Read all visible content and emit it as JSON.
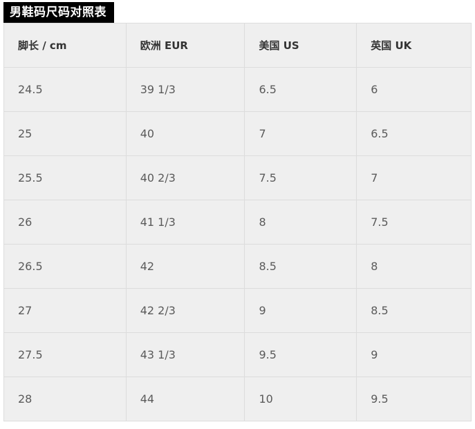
{
  "title": "男鞋码尺码对照表",
  "table": {
    "headers": [
      "脚长 / cm",
      "欧洲 EUR",
      "美国 US",
      "英国 UK"
    ],
    "rows": [
      [
        "24.5",
        "39 1/3",
        "6.5",
        "6"
      ],
      [
        "25",
        "40",
        "7",
        "6.5"
      ],
      [
        "25.5",
        "40 2/3",
        "7.5",
        "7"
      ],
      [
        "26",
        "41 1/3",
        "8",
        "7.5"
      ],
      [
        "26.5",
        "42",
        "8.5",
        "8"
      ],
      [
        "27",
        "42 2/3",
        "9",
        "8.5"
      ],
      [
        "27.5",
        "43 1/3",
        "9.5",
        "9"
      ],
      [
        "28",
        "44",
        "10",
        "9.5"
      ]
    ]
  }
}
